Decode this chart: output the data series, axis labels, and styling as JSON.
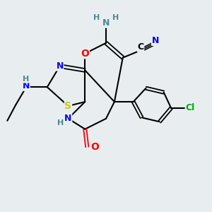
{
  "bg_color": "#e8eef0",
  "bond_color": "#000000",
  "atom_colors": {
    "N": "#0000ff",
    "O": "#ff0000",
    "S": "#cccc00",
    "Cl": "#00aa00",
    "C": "#000000",
    "H": "#4a8a8a"
  },
  "font_size": 9,
  "title": ""
}
